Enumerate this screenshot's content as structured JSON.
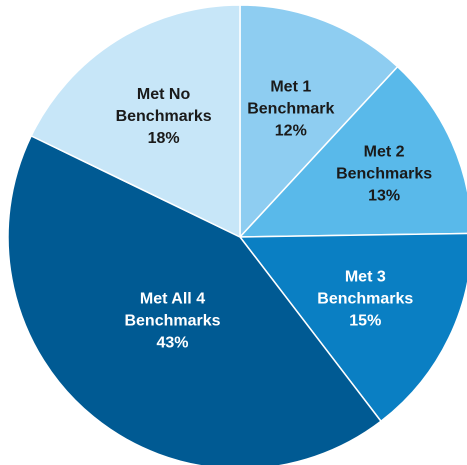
{
  "chart_data": {
    "type": "pie",
    "title": "",
    "legend": "none",
    "start": "top",
    "direction": "clockwise",
    "slices": [
      {
        "label_lines": [
          "Met 1",
          "Benchmark"
        ],
        "value": 12,
        "value_label": "12%",
        "color": "#8ecdf1",
        "text_color": "#1a1a1a"
      },
      {
        "label_lines": [
          "Met 2",
          "Benchmarks"
        ],
        "value": 13,
        "value_label": "13%",
        "color": "#59b9ea",
        "text_color": "#1a1a1a"
      },
      {
        "label_lines": [
          "Met 3",
          "Benchmarks"
        ],
        "value": 15,
        "value_label": "15%",
        "color": "#0a7fc3",
        "text_color": "#ffffff"
      },
      {
        "label_lines": [
          "Met All 4",
          "Benchmarks"
        ],
        "value": 43,
        "value_label": "43%",
        "color": "#005a93",
        "text_color": "#ffffff"
      },
      {
        "label_lines": [
          "Met No",
          "Benchmarks"
        ],
        "value": 18,
        "value_label": "18%",
        "color": "#c7e6f8",
        "text_color": "#1a1a1a"
      }
    ],
    "separator_color": "#ffffff"
  }
}
